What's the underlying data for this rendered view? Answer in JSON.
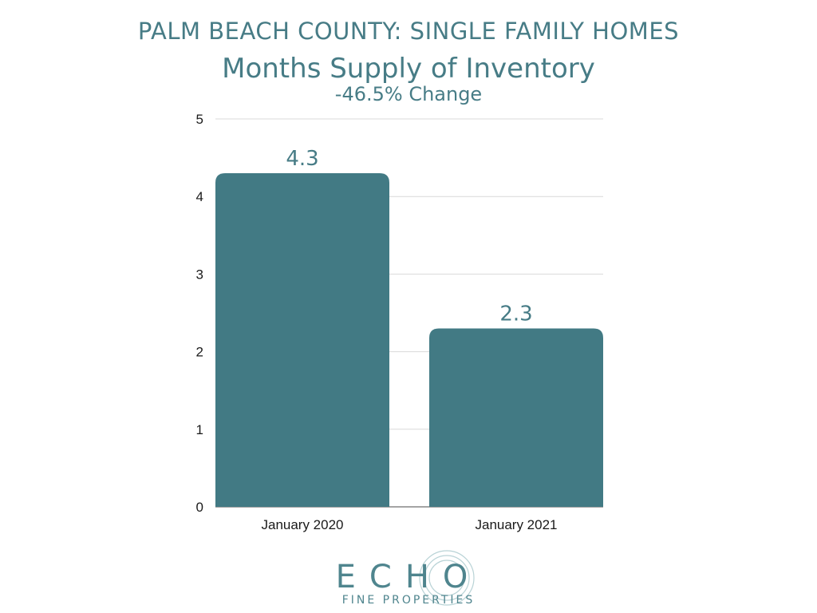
{
  "header": {
    "title": "PALM BEACH COUNTY: SINGLE FAMILY HOMES",
    "subtitle": "Months Supply of Inventory",
    "change": "-46.5% Change"
  },
  "chart_data": {
    "type": "bar",
    "categories": [
      "January 2020",
      "January 2021"
    ],
    "values": [
      4.3,
      2.3
    ],
    "value_labels": [
      "4.3",
      "2.3"
    ],
    "y_ticks": [
      "0",
      "1",
      "2",
      "3",
      "4",
      "5"
    ],
    "ylim": [
      0,
      5
    ],
    "grid": true,
    "bar_color": "#427a84",
    "label_color": "#477c86"
  },
  "logo": {
    "name": "ECHO",
    "tagline": "FINE PROPERTIES",
    "color": "#4f858e"
  }
}
